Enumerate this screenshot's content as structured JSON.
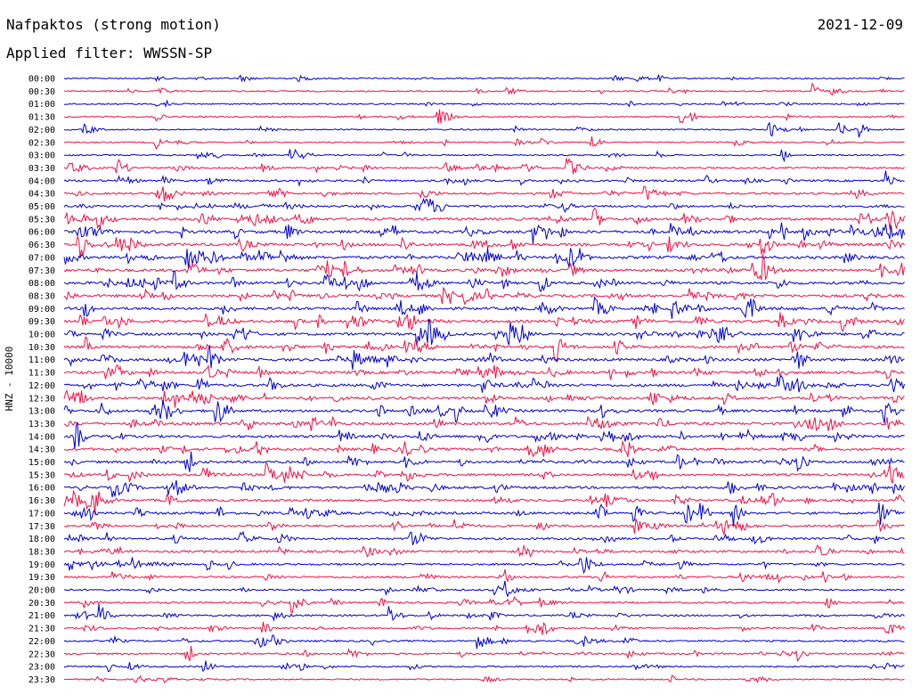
{
  "header": {
    "station": "Nafpaktos (strong motion)",
    "date": "2021-12-09",
    "filter": "Applied filter: WWSSN-SP"
  },
  "chart_data": {
    "type": "line",
    "title": "Nafpaktos (strong motion)",
    "ylabel": "HNZ - 10000",
    "xlabel": "",
    "colors": [
      "#0000cc",
      "#ee1144"
    ],
    "rows": [
      "00:00",
      "00:30",
      "01:00",
      "01:30",
      "02:00",
      "02:30",
      "03:00",
      "03:30",
      "04:00",
      "04:30",
      "05:00",
      "05:30",
      "06:00",
      "06:30",
      "07:00",
      "07:30",
      "08:00",
      "08:30",
      "09:00",
      "09:30",
      "10:00",
      "10:30",
      "11:00",
      "11:30",
      "12:00",
      "12:30",
      "13:00",
      "13:30",
      "14:00",
      "14:30",
      "15:00",
      "15:30",
      "16:00",
      "16:30",
      "17:00",
      "17:30",
      "18:00",
      "18:30",
      "19:00",
      "19:30",
      "20:00",
      "20:30",
      "21:00",
      "21:30",
      "22:00",
      "22:30",
      "23:00",
      "23:30"
    ],
    "noise_level": [
      0.3,
      0.3,
      0.3,
      0.3,
      0.3,
      0.3,
      0.3,
      0.5,
      0.6,
      0.6,
      0.7,
      0.9,
      1.0,
      1.0,
      1.0,
      1.0,
      0.9,
      0.9,
      0.9,
      0.9,
      0.9,
      0.9,
      0.9,
      0.9,
      0.9,
      0.9,
      0.9,
      0.9,
      0.9,
      0.9,
      0.8,
      0.8,
      0.8,
      0.8,
      0.8,
      0.7,
      0.7,
      0.7,
      0.6,
      0.6,
      0.5,
      0.5,
      0.5,
      0.5,
      0.5,
      0.5,
      0.4,
      0.3
    ]
  }
}
